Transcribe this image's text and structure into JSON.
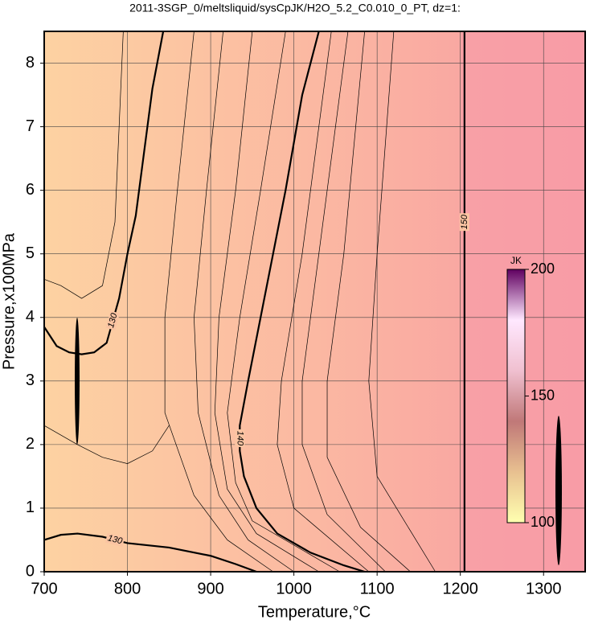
{
  "chart_data": {
    "type": "contour",
    "title": "2011-3SGP_0/meltsliquid/sysCpJK/H2O_5.2_C0.010_0_PT, dz=1:",
    "x_label": "Temperature,°C",
    "y_label": "Pressure,x100MPa",
    "xlim": [
      700,
      1350
    ],
    "ylim": [
      0,
      8.5
    ],
    "xticks": [
      700,
      800,
      900,
      1000,
      1100,
      1200,
      1300
    ],
    "yticks": [
      0,
      1,
      2,
      3,
      4,
      5,
      6,
      7,
      8
    ],
    "grid": true,
    "contours": [
      {
        "level": 130,
        "bold": true,
        "x": [
          700,
          715,
          730,
          745,
          760,
          775,
          790,
          800,
          810,
          820,
          830,
          843
        ],
        "y": [
          3.85,
          3.55,
          3.45,
          3.42,
          3.45,
          3.6,
          4.3,
          5.0,
          5.6,
          6.6,
          7.6,
          8.5
        ]
      },
      {
        "level": 130,
        "bold": true,
        "x": [
          700,
          720,
          740,
          770,
          800,
          850,
          900,
          930,
          955
        ],
        "y": [
          0.5,
          0.58,
          0.6,
          0.55,
          0.45,
          0.38,
          0.25,
          0.12,
          0
        ]
      },
      {
        "level": 140,
        "bold": true,
        "x": [
          1030,
          1010,
          990,
          975,
          960,
          945,
          935,
          935,
          940,
          955,
          980,
          1020,
          1060,
          1085
        ],
        "y": [
          8.5,
          7.5,
          6.0,
          5.0,
          4.0,
          3.0,
          2.3,
          1.9,
          1.5,
          1.0,
          0.6,
          0.3,
          0.1,
          0
        ]
      },
      {
        "level": 150,
        "bold": true,
        "x": [
          1205,
          1205
        ],
        "y": [
          0,
          8.5
        ]
      },
      {
        "level": 128,
        "bold": false,
        "x": [
          700,
          720,
          745,
          770,
          785,
          795
        ],
        "y": [
          4.6,
          4.5,
          4.3,
          4.5,
          5.5,
          8.5
        ]
      },
      {
        "level": 126,
        "bold": false,
        "x": [
          700,
          740,
          770,
          800,
          830,
          850
        ],
        "y": [
          2.3,
          2.0,
          1.8,
          1.7,
          1.9,
          2.3
        ]
      },
      {
        "level": 132,
        "bold": false,
        "x": [
          880,
          860,
          845,
          845,
          880,
          920,
          975
        ],
        "y": [
          8.5,
          6,
          4,
          2.5,
          1.2,
          0.5,
          0
        ]
      },
      {
        "level": 134,
        "bold": false,
        "x": [
          915,
          895,
          880,
          885,
          910,
          945,
          1000
        ],
        "y": [
          8.5,
          6,
          4,
          2.5,
          1.2,
          0.5,
          0
        ]
      },
      {
        "level": 136,
        "bold": false,
        "x": [
          950,
          930,
          910,
          905,
          920,
          955,
          1030
        ],
        "y": [
          8.5,
          6,
          4,
          2.5,
          1.3,
          0.6,
          0
        ]
      },
      {
        "level": 138,
        "bold": false,
        "x": [
          990,
          960,
          935,
          920,
          930,
          950,
          1055
        ],
        "y": [
          8.5,
          6,
          4,
          2.5,
          1.4,
          0.8,
          0
        ]
      },
      {
        "level": 142,
        "bold": false,
        "x": [
          1045,
          1010,
          985,
          980,
          1000,
          1090
        ],
        "y": [
          8.5,
          5,
          3,
          2,
          1,
          0
        ]
      },
      {
        "level": 144,
        "bold": false,
        "x": [
          1065,
          1030,
          1010,
          1010,
          1040,
          1110
        ],
        "y": [
          8.5,
          5,
          3,
          2,
          0.9,
          0
        ]
      },
      {
        "level": 146,
        "bold": false,
        "x": [
          1085,
          1060,
          1040,
          1040,
          1080,
          1140
        ],
        "y": [
          8.5,
          5,
          3,
          1.8,
          0.7,
          0
        ]
      },
      {
        "level": 148,
        "bold": false,
        "x": [
          1120,
          1100,
          1090,
          1100,
          1170
        ],
        "y": [
          8.5,
          5,
          3,
          1.5,
          0
        ]
      }
    ],
    "colorbar": {
      "label": "JK",
      "lim": [
        100,
        200
      ],
      "ticks": [
        100,
        150,
        200
      ],
      "colors": [
        "#ffffb0",
        "#e8c090",
        "#c07878",
        "#f0c0d0",
        "#ffe8ff",
        "#600060"
      ]
    }
  }
}
